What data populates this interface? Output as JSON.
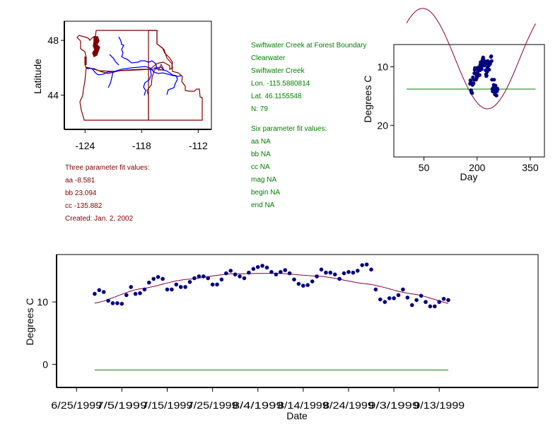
{
  "colors": {
    "state_border": "#800000",
    "river": "#0000ff",
    "fit_curve": "#800040",
    "points": "#000080",
    "threshold": "#008000",
    "three_param_text": "#800000",
    "site_text": "#008000"
  },
  "three_param": {
    "title": "Three parameter fit values:",
    "aa": "aa -8.581",
    "bb": "bb 23.094",
    "cc": "cc -135.882",
    "created": "Created:   Jan. 2, 2002"
  },
  "site": {
    "name": "Swiftwater Creek at Forest Boundary",
    "basin": "Clearwater",
    "stream": "Swiftwater Creek",
    "lon": "Lon. -115.5880814",
    "lat": "Lat. 46.1155548",
    "n": "N: 79"
  },
  "six_param": {
    "title": "Six parameter fit values:",
    "aa": "aa NA",
    "bb": "bb NA",
    "cc": "cc NA",
    "mag": "mag NA",
    "begin": "begin NA",
    "end": "end NA"
  },
  "chart_data": [
    {
      "type": "map",
      "title": "",
      "xlabel": "",
      "ylabel": "Latitude",
      "xticks": [
        "-124",
        "-118",
        "-112"
      ],
      "yticks": [
        "48",
        "44"
      ],
      "xlim": [
        -126.2,
        -110.6
      ],
      "ylim": [
        41.5,
        49.4
      ],
      "site_marker": {
        "lon": -115.588,
        "lat": 46.116,
        "symbol": "triangle"
      }
    },
    {
      "type": "scatter",
      "title": "",
      "xlabel": "Day",
      "ylabel": "Degrees C",
      "xticks": [
        "50",
        "200",
        "350"
      ],
      "yticks": [
        "10",
        "20"
      ],
      "xlim": [
        -35,
        390
      ],
      "ylim": [
        25.4,
        6.2
      ],
      "y_inverted": true,
      "fit": {
        "aa": -8.581,
        "bb": 23.094,
        "cc": -135.882,
        "x_range": [
          1,
          365
        ]
      },
      "threshold": 13.8,
      "points_day_range": [
        176,
        258
      ]
    },
    {
      "type": "scatter",
      "title": "",
      "xlabel": "Date",
      "ylabel": "Degrees C",
      "xticks": [
        "6/25/1999",
        "7/5/1999",
        "7/15/1999",
        "7/25/1999",
        "8/4/1999",
        "8/14/1999",
        "8/24/1999",
        "9/3/1999",
        "9/13/1999"
      ],
      "yticks": [
        "10",
        "0"
      ],
      "xlim": [
        -4.4,
        101.8
      ],
      "ylim": [
        -3.7,
        17.6
      ],
      "x_origin": "6/25/1999",
      "threshold": -0.9,
      "fit": {
        "x": [
          4,
          14,
          24,
          34,
          44,
          54,
          64,
          74,
          84
        ],
        "y": [
          9.8,
          12.1,
          13.6,
          14.5,
          14.6,
          14.1,
          12.9,
          11.3,
          9.5
        ]
      },
      "series": [
        {
          "name": "Observed",
          "x": [
            4,
            5,
            6,
            7,
            8,
            9,
            10,
            11,
            12,
            13,
            14,
            15,
            16,
            17,
            18,
            19,
            20,
            21,
            22,
            23,
            24,
            25,
            26,
            27,
            28,
            29,
            30,
            31,
            32,
            33,
            34,
            35,
            36,
            37,
            38,
            39,
            40,
            41,
            42,
            43,
            44,
            45,
            46,
            47,
            48,
            49,
            50,
            51,
            52,
            53,
            54,
            55,
            56,
            57,
            58,
            59,
            60,
            61,
            62,
            63,
            64,
            65,
            66,
            67,
            68,
            69,
            70,
            71,
            72,
            73,
            74,
            75,
            76,
            77,
            78,
            79,
            80,
            81,
            82
          ],
          "y": [
            11.3,
            11.9,
            11.6,
            10.2,
            9.8,
            9.8,
            9.7,
            11.1,
            12.4,
            11.3,
            11.4,
            12.0,
            13.1,
            13.7,
            14.0,
            13.7,
            12.0,
            12.0,
            12.8,
            12.4,
            12.4,
            13.2,
            13.8,
            14.1,
            14.1,
            13.8,
            12.8,
            12.8,
            13.6,
            14.6,
            15.0,
            14.4,
            14.1,
            13.8,
            14.7,
            15.3,
            15.6,
            15.8,
            15.5,
            14.8,
            14.4,
            14.8,
            15.1,
            14.6,
            13.6,
            12.9,
            12.6,
            12.7,
            13.3,
            14.1,
            15.2,
            14.7,
            14.7,
            14.4,
            13.7,
            14.6,
            14.8,
            14.7,
            15.0,
            15.9,
            16.0,
            15.2,
            12.0,
            10.4,
            10.0,
            10.6,
            10.6,
            11.1,
            12.0,
            10.7,
            9.5,
            10.3,
            11.0,
            10.0,
            9.3,
            9.3,
            10.0,
            10.5,
            10.3
          ]
        }
      ]
    }
  ]
}
